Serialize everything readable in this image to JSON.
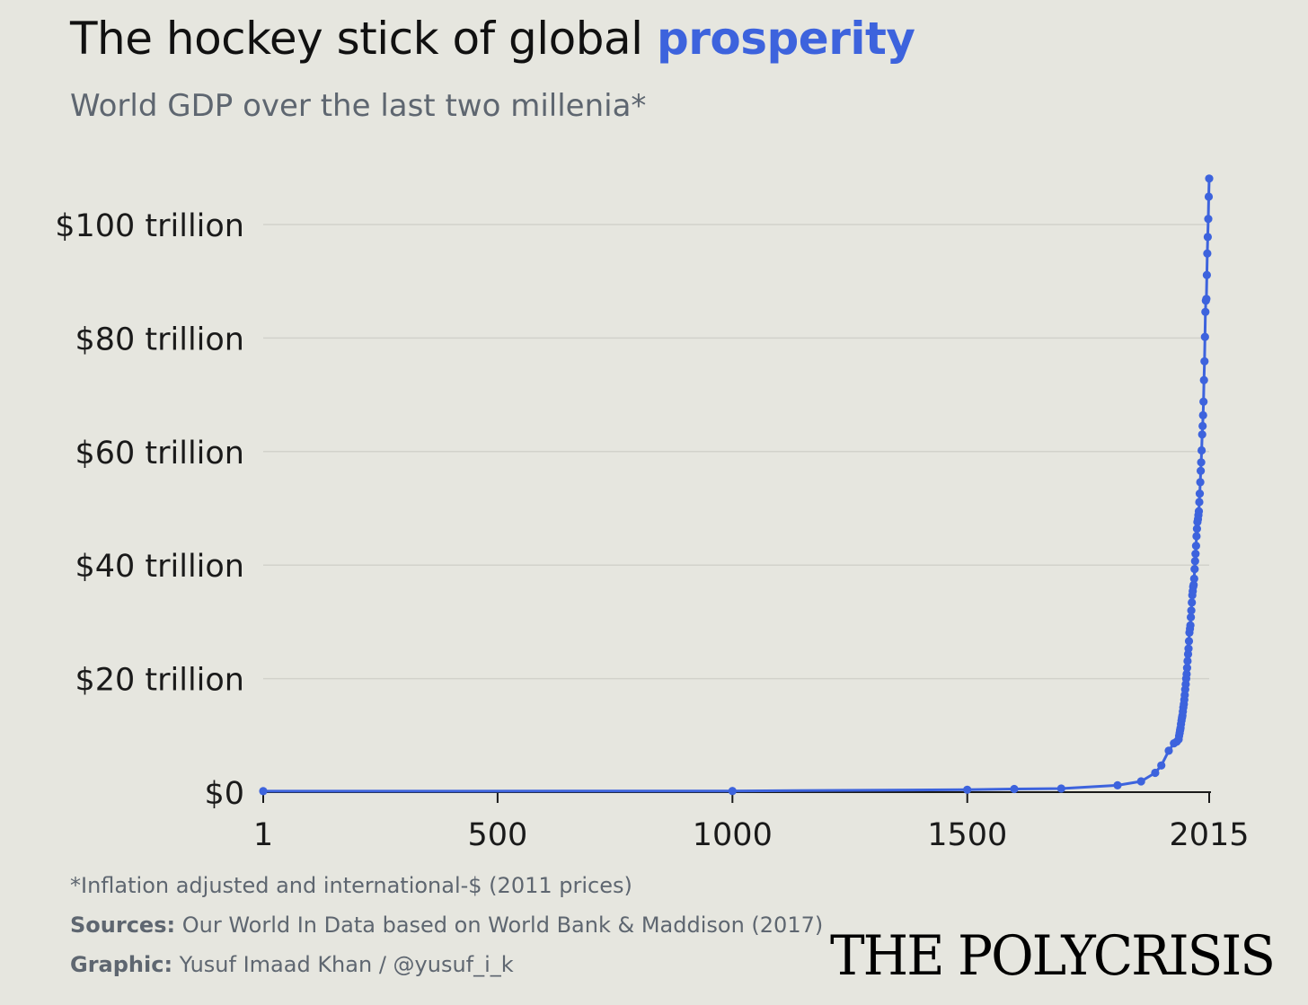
{
  "header": {
    "title_main": "The hockey stick of global ",
    "title_accent": "prosperity",
    "subtitle": "World GDP over the last two millenia*"
  },
  "footer": {
    "footnote": "*Inflation adjusted and international-$ (2011 prices)",
    "sources_label": "Sources:",
    "sources_text": " Our World In Data based on World Bank & Maddison (2017)",
    "graphic_label": "Graphic:",
    "graphic_text": " Yusuf Imaad Khan / @yusuf_i_k",
    "logo": "THE POLYCRISIS"
  },
  "colors": {
    "accent": "#3d63dd",
    "background": "#e6e6df",
    "gridline": "#d2d2cb"
  },
  "chart_data": {
    "type": "line",
    "title": "The hockey stick of global prosperity",
    "subtitle": "World GDP over the last two millenia*",
    "xlabel": "",
    "ylabel": "",
    "xlim": [
      1,
      2015
    ],
    "ylim": [
      0,
      108
    ],
    "x_ticks": [
      1,
      500,
      1000,
      1500,
      2015
    ],
    "x_tick_labels": [
      "1",
      "500",
      "1000",
      "1500",
      "2015"
    ],
    "y_ticks": [
      0,
      20,
      40,
      60,
      80,
      100
    ],
    "y_tick_labels": [
      "$0",
      "$20 trillion",
      "$40 trillion",
      "$60 trillion",
      "$80 trillion",
      "$100 trillion"
    ],
    "grid": "horizontal",
    "legend": "none",
    "series": [
      {
        "x": [
          1,
          1000,
          1500,
          1600,
          1700,
          1820,
          1870,
          1900,
          1913,
          1929,
          1940,
          1946,
          1950,
          1951,
          1952,
          1953,
          1954,
          1955,
          1956,
          1957,
          1958,
          1959,
          1960,
          1961,
          1962,
          1963,
          1964,
          1965,
          1966,
          1967,
          1968,
          1969,
          1970,
          1971,
          1972,
          1973,
          1974,
          1975,
          1976,
          1977,
          1978,
          1979,
          1980,
          1981,
          1982,
          1983,
          1984,
          1985,
          1986,
          1987,
          1988,
          1989,
          1990,
          1991,
          1992,
          1993,
          1994,
          1995,
          1996,
          1997,
          1998,
          1999,
          2000,
          2001,
          2002,
          2003,
          2004,
          2005,
          2006,
          2007,
          2008,
          2009,
          2010,
          2011,
          2012,
          2013,
          2014,
          2015
        ],
        "y": [
          0.18,
          0.21,
          0.43,
          0.56,
          0.64,
          1.2,
          1.9,
          3.4,
          4.7,
          7.3,
          8.6,
          8.9,
          9.3,
          9.9,
          10.4,
          10.9,
          11.3,
          12.0,
          12.6,
          13.1,
          13.5,
          14.2,
          14.9,
          15.5,
          16.3,
          17.1,
          18.1,
          19.0,
          20.0,
          20.8,
          21.9,
          23.1,
          24.3,
          25.3,
          26.6,
          28.1,
          28.8,
          29.4,
          30.8,
          32.0,
          33.4,
          34.7,
          35.4,
          36.2,
          36.5,
          37.6,
          39.3,
          40.7,
          42.0,
          43.4,
          45.1,
          46.4,
          47.6,
          48.1,
          48.8,
          49.5,
          51.1,
          52.6,
          54.6,
          56.6,
          58.1,
          60.2,
          63.0,
          64.5,
          66.4,
          68.8,
          72.6,
          75.9,
          80.2,
          84.6,
          86.6,
          86.9,
          91.1,
          94.9,
          97.8,
          101.0,
          104.9,
          108.1
        ]
      }
    ]
  }
}
